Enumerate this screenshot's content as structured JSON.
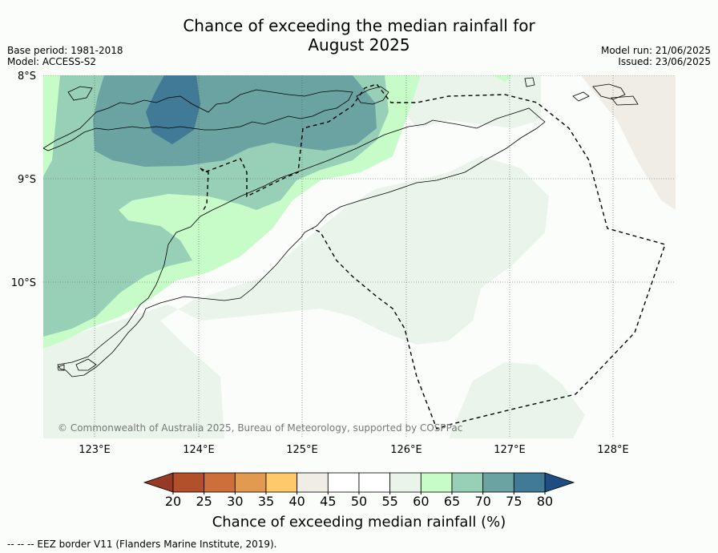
{
  "header": {
    "title_line1": "Chance of exceeding the median rainfall for",
    "title_line2": "August 2025",
    "base_period": "Base period: 1981-2018",
    "model": "Model: ACCESS-S2",
    "model_run": "Model run: 21/06/2025",
    "issued": "Issued: 23/06/2025"
  },
  "map": {
    "lat_labels": [
      "8°S",
      "9°S",
      "10°S"
    ],
    "lon_labels": [
      "123°E",
      "124°E",
      "125°E",
      "126°E",
      "127°E",
      "128°E"
    ],
    "copyright": "© Commonwealth of Australia 2025, Bureau of Meteorology, supported by COSPPac"
  },
  "colorbar": {
    "ticks": [
      "20",
      "25",
      "30",
      "35",
      "40",
      "45",
      "50",
      "55",
      "60",
      "65",
      "70",
      "75",
      "80"
    ],
    "colors": [
      "#b3502c",
      "#cd6f3a",
      "#e19a50",
      "#fdc96a",
      "#f0ede6",
      "#ffffff",
      "#ffffff",
      "#eaf4ea",
      "#c7fbc7",
      "#98cfb7",
      "#6ba3a3",
      "#407a96"
    ],
    "under_color": "#943a26",
    "over_color": "#1f4d83",
    "title": "Chance of exceeding median rainfall (%)"
  },
  "footer": {
    "legend": "--  --  -- EEZ border V11 (Flanders Marine Institute, 2019)."
  }
}
